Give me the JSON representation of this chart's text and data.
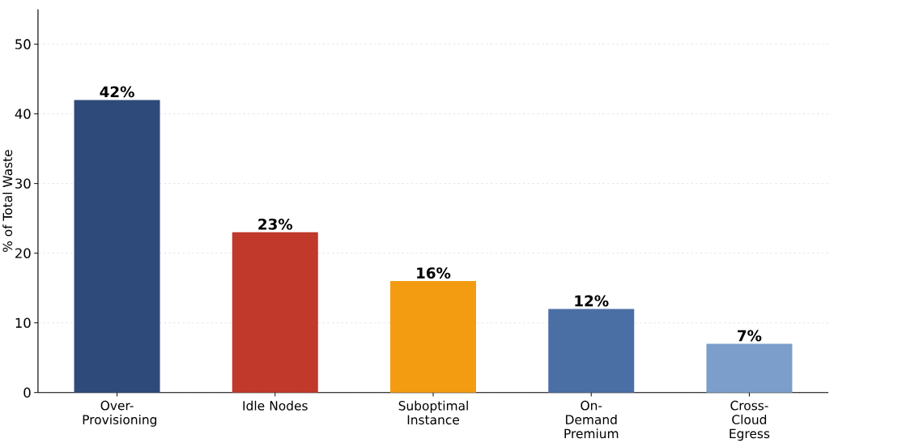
{
  "chart_data": {
    "type": "bar",
    "ylabel": "% of Total Waste",
    "categories": [
      "Over-Provisioning",
      "Idle Nodes",
      "Suboptimal Instance",
      "On-Demand Premium",
      "Cross-Cloud Egress"
    ],
    "values": [
      42,
      23,
      16,
      12,
      7
    ],
    "colors": [
      "#2e4a7a",
      "#c0392b",
      "#f39c12",
      "#4a6fa5",
      "#7b9fca"
    ],
    "value_labels": [
      "42%",
      "23%",
      "16%",
      "12%",
      "7%"
    ],
    "ylim": [
      0,
      55
    ],
    "yticks": [
      0,
      10,
      20,
      30,
      40,
      50
    ],
    "grid": "y"
  }
}
